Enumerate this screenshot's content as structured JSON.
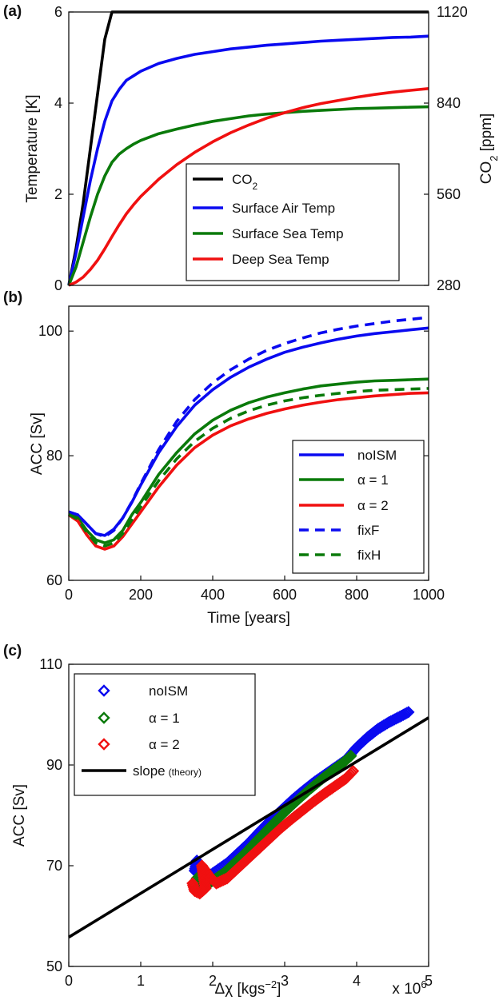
{
  "chart_data": [
    {
      "panel": "(a)",
      "type": "line",
      "x": [
        0,
        20,
        40,
        60,
        80,
        100,
        120,
        140,
        160,
        180,
        200,
        250,
        300,
        350,
        400,
        450,
        500,
        550,
        600,
        650,
        700,
        750,
        800,
        850,
        900,
        950,
        1000
      ],
      "xlim": [
        0,
        1000
      ],
      "ylabel": "Temperature [K]",
      "ylim": [
        0,
        6
      ],
      "yticks": [
        "0",
        "2",
        "4",
        "6"
      ],
      "y2label": "CO2 [ppm]",
      "y2lim": [
        280,
        1120
      ],
      "y2ticks": [
        "280",
        "560",
        "840",
        "1120"
      ],
      "series": [
        {
          "name": "CO2",
          "color": "#000000",
          "style": "solid",
          "values": [
            0,
            0.8,
            1.8,
            3.0,
            4.2,
            5.4,
            6,
            6,
            6,
            6,
            6,
            6,
            6,
            6,
            6,
            6,
            6,
            6,
            6,
            6,
            6,
            6,
            6,
            6,
            6,
            6,
            6
          ]
        },
        {
          "name": "Surface Air Temp",
          "color": "#0a0af0",
          "style": "solid",
          "values": [
            0,
            0.7,
            1.5,
            2.3,
            3.0,
            3.6,
            4.05,
            4.3,
            4.5,
            4.6,
            4.7,
            4.87,
            4.98,
            5.07,
            5.13,
            5.19,
            5.23,
            5.27,
            5.3,
            5.33,
            5.36,
            5.38,
            5.4,
            5.42,
            5.44,
            5.45,
            5.47
          ]
        },
        {
          "name": "Surface Sea Temp",
          "color": "#0a7a0a",
          "style": "solid",
          "values": [
            0,
            0.4,
            0.95,
            1.5,
            2.0,
            2.4,
            2.7,
            2.88,
            3.0,
            3.1,
            3.18,
            3.33,
            3.43,
            3.52,
            3.6,
            3.66,
            3.72,
            3.76,
            3.79,
            3.82,
            3.84,
            3.86,
            3.88,
            3.89,
            3.9,
            3.91,
            3.92
          ]
        },
        {
          "name": "Deep Sea Temp",
          "color": "#f01010",
          "style": "solid",
          "values": [
            0,
            0.07,
            0.18,
            0.35,
            0.55,
            0.8,
            1.07,
            1.33,
            1.57,
            1.77,
            1.95,
            2.33,
            2.65,
            2.92,
            3.15,
            3.35,
            3.52,
            3.67,
            3.79,
            3.9,
            3.99,
            4.06,
            4.13,
            4.19,
            4.24,
            4.28,
            4.32
          ]
        }
      ],
      "legend_position": "lower-right"
    },
    {
      "panel": "(b)",
      "type": "line",
      "x": [
        0,
        25,
        50,
        75,
        100,
        125,
        150,
        175,
        200,
        250,
        300,
        350,
        400,
        450,
        500,
        550,
        600,
        650,
        700,
        750,
        800,
        850,
        900,
        950,
        1000
      ],
      "xlabel": "Time [years]",
      "xlim": [
        0,
        1000
      ],
      "xticks": [
        "0",
        "200",
        "400",
        "600",
        "800",
        "1000"
      ],
      "ylabel": "ACC [Sv]",
      "ylim": [
        60,
        104
      ],
      "yticks": [
        "60",
        "80",
        "100"
      ],
      "series": [
        {
          "name": "noISM",
          "color": "#0a0af0",
          "style": "solid",
          "values": [
            71,
            70.5,
            69,
            67.5,
            67.2,
            68.2,
            70,
            72.5,
            75.3,
            80.5,
            84.7,
            88.1,
            90.6,
            92.6,
            94.2,
            95.5,
            96.6,
            97.4,
            98.1,
            98.7,
            99.2,
            99.6,
            99.9,
            100.2,
            100.5
          ]
        },
        {
          "name": "α = 1",
          "color": "#0a7a0a",
          "style": "solid",
          "values": [
            70.7,
            70,
            68,
            66.5,
            66,
            66.5,
            68,
            70.5,
            72.5,
            77,
            80.5,
            83.5,
            85.7,
            87.3,
            88.5,
            89.4,
            90.1,
            90.7,
            91.2,
            91.5,
            91.8,
            92,
            92.1,
            92.2,
            92.3
          ]
        },
        {
          "name": "α = 2",
          "color": "#f01010",
          "style": "solid",
          "values": [
            70.5,
            69.5,
            67.3,
            65.5,
            65,
            65.5,
            67,
            69,
            71,
            75,
            78.5,
            81.3,
            83.3,
            84.8,
            85.9,
            86.8,
            87.5,
            88.1,
            88.6,
            89,
            89.3,
            89.6,
            89.8,
            90,
            90.1
          ]
        },
        {
          "name": "fixF",
          "color": "#0a0af0",
          "style": "dashed",
          "values": [
            71,
            70.5,
            69,
            67.5,
            67,
            68,
            70,
            72.6,
            75.5,
            81,
            85.5,
            89,
            91.7,
            93.8,
            95.5,
            96.9,
            98,
            98.9,
            99.7,
            100.3,
            100.8,
            101.2,
            101.6,
            101.9,
            102.2
          ]
        },
        {
          "name": "fixH",
          "color": "#0a7a0a",
          "style": "dashed",
          "values": [
            70.6,
            69.8,
            67.7,
            66,
            65.5,
            66,
            67.5,
            69.7,
            71.8,
            76,
            79.5,
            82.3,
            84.4,
            86,
            87.2,
            88.1,
            88.8,
            89.3,
            89.7,
            90,
            90.3,
            90.5,
            90.6,
            90.7,
            90.8
          ]
        }
      ],
      "legend_position": "lower-right"
    },
    {
      "panel": "(c)",
      "type": "scatter",
      "xlabel": "Δχ [kgs",
      "xlabel_sup": "−2",
      "xlabel_end": "]",
      "xlim": [
        0,
        5
      ],
      "xticks": [
        "0",
        "1",
        "2",
        "3",
        "4",
        "5"
      ],
      "x_multiplier": "x 10",
      "x_multiplier_sup": "6",
      "ylabel": "ACC [Sv]",
      "ylim": [
        50,
        110
      ],
      "yticks": [
        "50",
        "70",
        "90",
        "110"
      ],
      "series": [
        {
          "name": "noISM",
          "color": "#0a0af0",
          "marker": "diamond-open",
          "points": [
            [
              1.75,
              69
            ],
            [
              1.78,
              71
            ],
            [
              1.8,
              69
            ],
            [
              1.85,
              67
            ],
            [
              1.9,
              67.5
            ],
            [
              2.0,
              68.5
            ],
            [
              2.1,
              69.5
            ],
            [
              2.2,
              70.5
            ],
            [
              2.35,
              72.5
            ],
            [
              2.5,
              74.5
            ],
            [
              2.65,
              76.8
            ],
            [
              2.8,
              79
            ],
            [
              2.95,
              81
            ],
            [
              3.1,
              83
            ],
            [
              3.25,
              84.8
            ],
            [
              3.4,
              86.5
            ],
            [
              3.55,
              88
            ],
            [
              3.7,
              89.5
            ],
            [
              3.85,
              91
            ],
            [
              4.0,
              93.5
            ],
            [
              4.15,
              95.5
            ],
            [
              4.3,
              97.2
            ],
            [
              4.45,
              98.5
            ],
            [
              4.6,
              99.6
            ],
            [
              4.72,
              100.5
            ]
          ]
        },
        {
          "name": "α = 1",
          "color": "#0a7a0a",
          "marker": "diamond-open",
          "points": [
            [
              1.78,
              67.5
            ],
            [
              1.82,
              66.5
            ],
            [
              1.9,
              66
            ],
            [
              2.0,
              67
            ],
            [
              2.15,
              68.5
            ],
            [
              2.3,
              70.5
            ],
            [
              2.45,
              72.5
            ],
            [
              2.6,
              74.8
            ],
            [
              2.75,
              77
            ],
            [
              2.9,
              79.2
            ],
            [
              3.05,
              81.3
            ],
            [
              3.2,
              83.3
            ],
            [
              3.35,
              85.2
            ],
            [
              3.5,
              87
            ],
            [
              3.65,
              88.7
            ],
            [
              3.8,
              90.3
            ],
            [
              3.92,
              91.8
            ]
          ]
        },
        {
          "name": "α = 2",
          "color": "#f01010",
          "marker": "diamond-open",
          "points": [
            [
              1.72,
              66.5
            ],
            [
              1.75,
              65
            ],
            [
              1.82,
              64.5
            ],
            [
              1.9,
              65.5
            ],
            [
              1.85,
              70
            ],
            [
              1.95,
              68
            ],
            [
              2.05,
              66.5
            ],
            [
              2.2,
              67.5
            ],
            [
              2.35,
              69.5
            ],
            [
              2.5,
              71.5
            ],
            [
              2.65,
              73.5
            ],
            [
              2.8,
              75.5
            ],
            [
              2.95,
              77.5
            ],
            [
              3.1,
              79.3
            ],
            [
              3.25,
              81
            ],
            [
              3.4,
              82.7
            ],
            [
              3.55,
              84.3
            ],
            [
              3.7,
              85.8
            ],
            [
              3.85,
              87.3
            ],
            [
              3.95,
              88.8
            ]
          ]
        },
        {
          "name": "slope",
          "name_note": "(theory)",
          "color": "#000000",
          "type": "line",
          "points": [
            [
              0,
              55.8
            ],
            [
              5,
              99.4
            ]
          ]
        }
      ],
      "legend_position": "upper-left"
    }
  ]
}
